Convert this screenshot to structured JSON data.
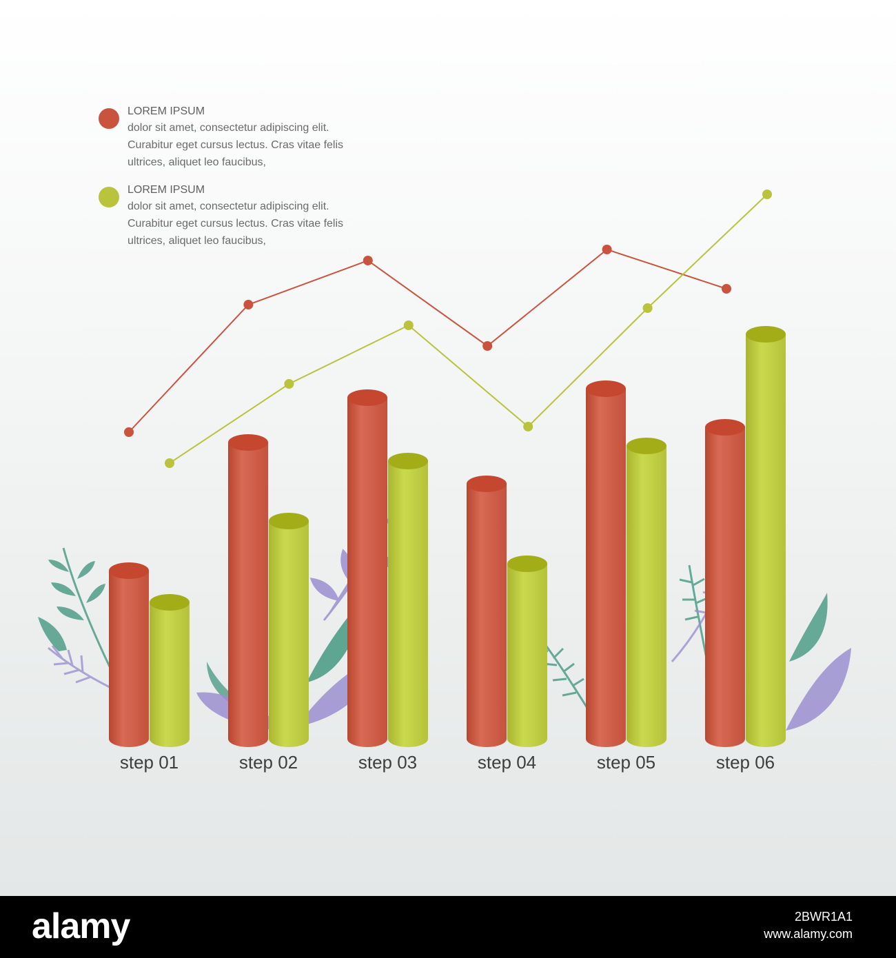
{
  "legend": [
    {
      "title": "LOREM IPSUM",
      "text": "dolor sit amet, consectetur adipiscing elit. Curabitur eget cursus lectus. Cras vitae felis ultrices, aliquet leo faucibus,",
      "color": "#c9533c"
    },
    {
      "title": "LOREM IPSUM",
      "text": "dolor sit amet, consectetur adipiscing elit. Curabitur eget cursus lectus. Cras vitae felis ultrices, aliquet leo faucibus,",
      "color": "#b9c33b"
    }
  ],
  "chart_data": {
    "type": "bar",
    "categories": [
      "step 01",
      "step 02",
      "step 03",
      "step 04",
      "step 05",
      "step 06"
    ],
    "series": [
      {
        "values": [
          244,
          430,
          495,
          370,
          508,
          452
        ],
        "color": "#cf5b45"
      },
      {
        "values": [
          198,
          316,
          403,
          254,
          425,
          587
        ],
        "color": "#bccb3f"
      }
    ],
    "lines": [
      {
        "values": [
          445,
          630,
          694,
          570,
          710,
          653
        ],
        "color": "#c9533c"
      },
      {
        "values": [
          400,
          515,
          600,
          453,
          625,
          790
        ],
        "color": "#b9c33b"
      }
    ],
    "grid": false
  },
  "footer": {
    "brand": "alamy",
    "image_id": "2BWR1A1",
    "url": "www.alamy.com"
  }
}
